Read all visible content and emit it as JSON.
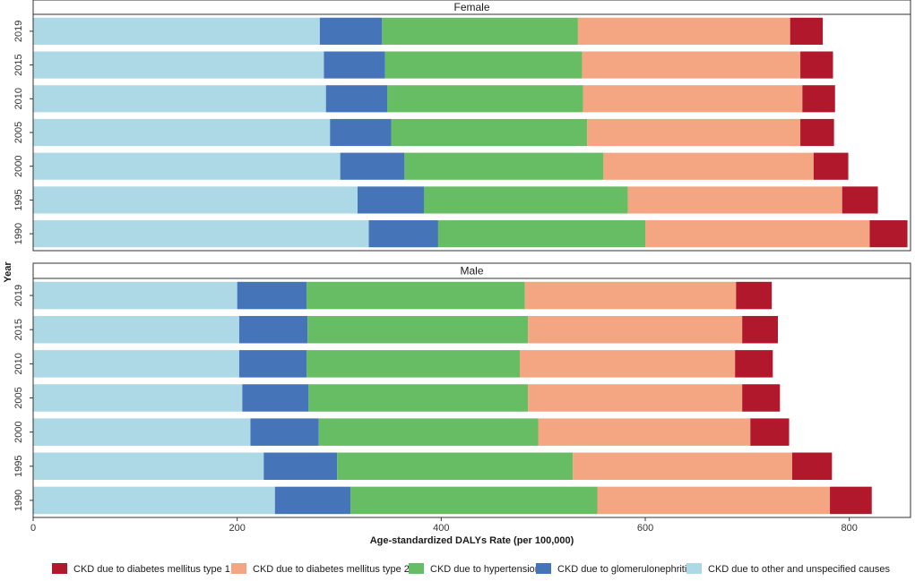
{
  "chart_data": {
    "type": "bar",
    "orientation": "horizontal",
    "stacked": true,
    "xlabel": "Age-standardized DALYs Rate (per 100,000)",
    "ylabel": "Year",
    "xlim": [
      0,
      860
    ],
    "xticks": [
      0,
      200,
      400,
      600,
      800
    ],
    "categories": [
      "1990",
      "1995",
      "2000",
      "2005",
      "2010",
      "2015",
      "2019"
    ],
    "legend_position": "bottom",
    "series_meta": [
      {
        "name": "CKD due to other and unspecified causes",
        "color": "#ADD8E6"
      },
      {
        "name": "CKD due to glomerulonephritis",
        "color": "#4575B8"
      },
      {
        "name": "CKD due to hypertension",
        "color": "#66BD63"
      },
      {
        "name": "CKD due to diabetes mellitus type 2",
        "color": "#F4A582"
      },
      {
        "name": "CKD due to diabetes mellitus type 1",
        "color": "#B2182B"
      }
    ],
    "legend_order": [
      "CKD due to diabetes mellitus type 1",
      "CKD due to diabetes mellitus type 2",
      "CKD due to hypertension",
      "CKD due to glomerulonephritis",
      "CKD due to other and unspecified causes"
    ],
    "panels": [
      {
        "title": "Female",
        "series": [
          {
            "name": "CKD due to other and unspecified causes",
            "values": [
              329,
              318,
              301,
              291,
              287,
              285,
              281
            ]
          },
          {
            "name": "CKD due to glomerulonephritis",
            "values": [
              68,
              65,
              63,
              60,
              60,
              60,
              61
            ]
          },
          {
            "name": "CKD due to hypertension",
            "values": [
              203,
              200,
              195,
              192,
              192,
              193,
              192
            ]
          },
          {
            "name": "CKD due to diabetes mellitus type 2",
            "values": [
              220,
              210,
              206,
              209,
              215,
              214,
              208
            ]
          },
          {
            "name": "CKD due to diabetes mellitus type 1",
            "values": [
              37,
              35,
              34,
              33,
              32,
              32,
              32
            ]
          }
        ]
      },
      {
        "title": "Male",
        "series": [
          {
            "name": "CKD due to other and unspecified causes",
            "values": [
              237,
              226,
              213,
              205,
              202,
              202,
              200
            ]
          },
          {
            "name": "CKD due to glomerulonephritis",
            "values": [
              74,
              72,
              67,
              65,
              66,
              67,
              68
            ]
          },
          {
            "name": "CKD due to hypertension",
            "values": [
              242,
              231,
              215,
              215,
              209,
              216,
              214
            ]
          },
          {
            "name": "CKD due to diabetes mellitus type 2",
            "values": [
              228,
              215,
              208,
              210,
              211,
              210,
              207
            ]
          },
          {
            "name": "CKD due to diabetes mellitus type 1",
            "values": [
              41,
              39,
              38,
              37,
              37,
              35,
              35
            ]
          }
        ]
      }
    ]
  }
}
